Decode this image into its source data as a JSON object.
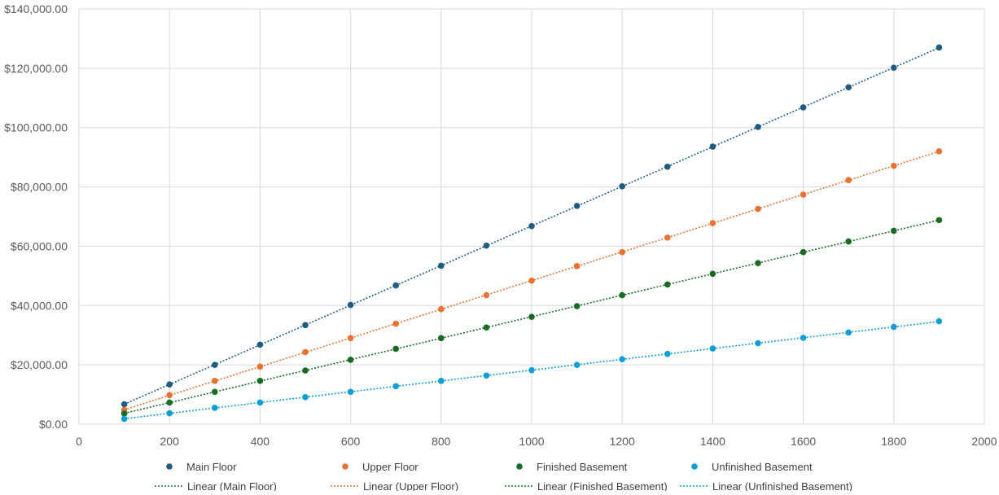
{
  "chart_data": {
    "type": "scatter",
    "title": "",
    "xlabel": "",
    "ylabel": "",
    "xlim": [
      0,
      2000
    ],
    "ylim": [
      0,
      140000
    ],
    "x_ticks": [
      0,
      200,
      400,
      600,
      800,
      1000,
      1200,
      1400,
      1600,
      1800,
      2000
    ],
    "y_ticks": [
      0,
      20000,
      40000,
      60000,
      80000,
      100000,
      120000,
      140000
    ],
    "x_tick_labels": [
      "0",
      "200",
      "400",
      "600",
      "800",
      "1000",
      "1200",
      "1400",
      "1600",
      "1800",
      "2000"
    ],
    "y_tick_labels": [
      "$0.00",
      "$20,000.00",
      "$40,000.00",
      "$60,000.00",
      "$80,000.00",
      "$100,000.00",
      "$120,000.00",
      "$140,000.00"
    ],
    "grid": true,
    "legend_position": "bottom",
    "x": [
      100,
      200,
      300,
      400,
      500,
      600,
      700,
      800,
      900,
      1000,
      1100,
      1200,
      1300,
      1400,
      1500,
      1600,
      1700,
      1800,
      1900
    ],
    "series": [
      {
        "name": "Main Floor",
        "trendline": "Linear (Main Floor)",
        "color": "#1F5C82",
        "values": [
          6700,
          13400,
          20000,
          26800,
          33400,
          40200,
          46800,
          53400,
          60200,
          66800,
          73600,
          80200,
          86800,
          93600,
          100200,
          106800,
          113600,
          120200,
          127000
        ]
      },
      {
        "name": "Upper Floor",
        "trendline": "Linear (Upper Floor)",
        "color": "#E97132",
        "values": [
          4800,
          9800,
          14600,
          19400,
          24300,
          29000,
          33900,
          38800,
          43500,
          48400,
          53300,
          58000,
          62900,
          67800,
          72600,
          77400,
          82300,
          87100,
          92000
        ]
      },
      {
        "name": "Finished Basement",
        "trendline": "Linear (Finished Basement)",
        "color": "#196B24",
        "values": [
          3600,
          7300,
          10900,
          14600,
          18100,
          21700,
          25400,
          29000,
          32600,
          36200,
          39800,
          43500,
          47100,
          50700,
          54300,
          58000,
          61600,
          65200,
          68800
        ]
      },
      {
        "name": "Unfinished Basement",
        "trendline": "Linear (Unfinished Basement)",
        "color": "#0F9ED5",
        "values": [
          1800,
          3700,
          5500,
          7300,
          9100,
          10900,
          12800,
          14600,
          16400,
          18200,
          20000,
          21900,
          23700,
          25500,
          27300,
          29100,
          30900,
          32800,
          34700
        ]
      }
    ]
  }
}
